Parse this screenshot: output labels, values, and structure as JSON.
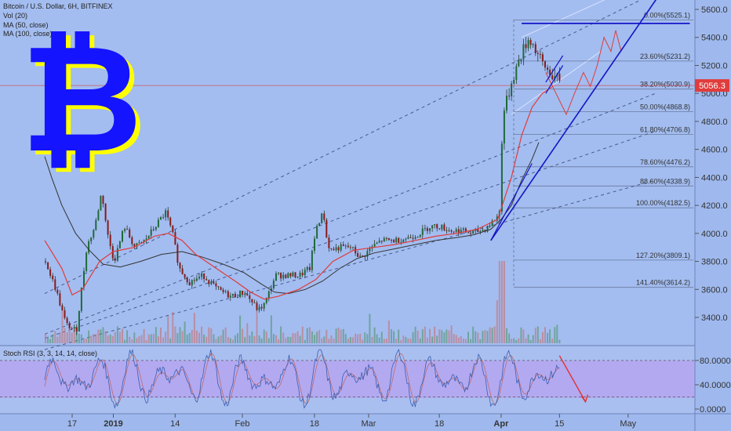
{
  "header": {
    "title": "Bitcoin / U.S. Dollar, 6H, BITFINEX",
    "ind1": "Vol (20)",
    "ind2": "MA (50, close)",
    "ind3": "MA (100, close)"
  },
  "price_label": "5056.3",
  "stoch_title": "Stoch RSI (3, 3, 14, 14, close)",
  "colors": {
    "background": "#9fb9ee",
    "price_line": "#e03c3c",
    "ma50": "#e03c3c",
    "ma100": "#333333",
    "trend": "#1414c8",
    "stoch_band": "#b7a2f2",
    "logo_fill": "#1414ff",
    "logo_shadow": "#ffff00"
  },
  "chart_data": [
    {
      "type": "candlestick",
      "title": "Bitcoin / U.S. Dollar, 6H, BITFINEX",
      "ylim": [
        3200,
        5700
      ],
      "y_ticks": [
        3400,
        3600,
        3800,
        4000,
        4200,
        4400,
        4600,
        4800,
        5000,
        5200,
        5400,
        5600
      ],
      "y_tick_labels": [
        "3400.0",
        "3600.0",
        "3800.0",
        "4000.0",
        "4200.0",
        "4400.0",
        "4600.0",
        "4800.0",
        "5000.0",
        "5200.0",
        "5400.0",
        "5600.0"
      ],
      "x_labels": [
        {
          "t": 0.4,
          "label": "17"
        },
        {
          "t": 1.0,
          "label": "2019"
        },
        {
          "t": 1.9,
          "label": "14"
        },
        {
          "t": 2.88,
          "label": "Feb"
        },
        {
          "t": 3.93,
          "label": "18"
        },
        {
          "t": 4.72,
          "label": "Mar"
        },
        {
          "t": 5.75,
          "label": "18"
        },
        {
          "t": 6.65,
          "label": "Apr"
        },
        {
          "t": 7.5,
          "label": "15"
        },
        {
          "t": 8.5,
          "label": "May"
        }
      ],
      "price_series": [
        [
          0.0,
          3800
        ],
        [
          0.15,
          3600
        ],
        [
          0.3,
          3350
        ],
        [
          0.45,
          3300
        ],
        [
          0.6,
          3900
        ],
        [
          0.72,
          4050
        ],
        [
          0.82,
          4300
        ],
        [
          0.9,
          4000
        ],
        [
          1.0,
          3800
        ],
        [
          1.15,
          4050
        ],
        [
          1.3,
          3900
        ],
        [
          1.45,
          3950
        ],
        [
          1.6,
          4050
        ],
        [
          1.75,
          4150
        ],
        [
          1.85,
          4000
        ],
        [
          1.95,
          3750
        ],
        [
          2.1,
          3650
        ],
        [
          2.3,
          3700
        ],
        [
          2.5,
          3600
        ],
        [
          2.7,
          3550
        ],
        [
          2.9,
          3580
        ],
        [
          3.1,
          3450
        ],
        [
          3.2,
          3500
        ],
        [
          3.35,
          3700
        ],
        [
          3.5,
          3700
        ],
        [
          3.7,
          3700
        ],
        [
          3.85,
          3750
        ],
        [
          3.95,
          4050
        ],
        [
          4.05,
          4150
        ],
        [
          4.1,
          3950
        ],
        [
          4.15,
          3880
        ],
        [
          4.3,
          3900
        ],
        [
          4.45,
          3900
        ],
        [
          4.6,
          3820
        ],
        [
          4.75,
          3900
        ],
        [
          4.9,
          3950
        ],
        [
          5.1,
          3950
        ],
        [
          5.3,
          3970
        ],
        [
          5.45,
          4000
        ],
        [
          5.6,
          4050
        ],
        [
          5.75,
          4050
        ],
        [
          5.9,
          4020
        ],
        [
          6.05,
          4020
        ],
        [
          6.2,
          4000
        ],
        [
          6.4,
          4030
        ],
        [
          6.55,
          4100
        ],
        [
          6.62,
          4150
        ],
        [
          6.66,
          4850
        ],
        [
          6.7,
          4900
        ],
        [
          6.8,
          5100
        ],
        [
          6.95,
          5300
        ],
        [
          7.05,
          5400
        ],
        [
          7.15,
          5300
        ],
        [
          7.25,
          5200
        ],
        [
          7.35,
          5150
        ],
        [
          7.45,
          5100
        ],
        [
          7.5,
          5056
        ]
      ],
      "ma50": [
        [
          0.0,
          3950
        ],
        [
          0.25,
          3750
        ],
        [
          0.4,
          3560
        ],
        [
          0.55,
          3600
        ],
        [
          0.8,
          3800
        ],
        [
          1.0,
          3870
        ],
        [
          1.3,
          3900
        ],
        [
          1.6,
          3980
        ],
        [
          1.8,
          4000
        ],
        [
          2.0,
          3950
        ],
        [
          2.2,
          3850
        ],
        [
          2.5,
          3750
        ],
        [
          2.8,
          3650
        ],
        [
          3.0,
          3580
        ],
        [
          3.2,
          3530
        ],
        [
          3.4,
          3550
        ],
        [
          3.7,
          3600
        ],
        [
          3.95,
          3670
        ],
        [
          4.2,
          3800
        ],
        [
          4.5,
          3880
        ],
        [
          4.8,
          3900
        ],
        [
          5.1,
          3920
        ],
        [
          5.4,
          3950
        ],
        [
          5.7,
          3980
        ],
        [
          6.0,
          4000
        ],
        [
          6.3,
          4030
        ],
        [
          6.6,
          4100
        ],
        [
          6.8,
          4400
        ],
        [
          6.95,
          4700
        ],
        [
          7.1,
          4900
        ],
        [
          7.25,
          5000
        ],
        [
          7.4,
          5050
        ]
      ],
      "ma100": [
        [
          0.0,
          4550
        ],
        [
          0.1,
          4400
        ],
        [
          0.25,
          4200
        ],
        [
          0.45,
          4000
        ],
        [
          0.65,
          3880
        ],
        [
          0.85,
          3780
        ],
        [
          1.1,
          3760
        ],
        [
          1.4,
          3800
        ],
        [
          1.7,
          3850
        ],
        [
          2.0,
          3870
        ],
        [
          2.3,
          3830
        ],
        [
          2.6,
          3780
        ],
        [
          2.9,
          3720
        ],
        [
          3.15,
          3640
        ],
        [
          3.35,
          3580
        ],
        [
          3.55,
          3570
        ],
        [
          3.8,
          3600
        ],
        [
          4.05,
          3660
        ],
        [
          4.3,
          3750
        ],
        [
          4.55,
          3820
        ],
        [
          4.8,
          3860
        ],
        [
          5.1,
          3890
        ],
        [
          5.4,
          3920
        ],
        [
          5.7,
          3950
        ],
        [
          6.0,
          3970
        ],
        [
          6.25,
          3990
        ],
        [
          6.5,
          4030
        ],
        [
          6.65,
          4100
        ],
        [
          6.8,
          4200
        ],
        [
          6.95,
          4380
        ],
        [
          7.1,
          4530
        ],
        [
          7.2,
          4650
        ]
      ],
      "projection": [
        [
          7.3,
          5150
        ],
        [
          7.45,
          5000
        ],
        [
          7.6,
          4850
        ],
        [
          7.72,
          5000
        ],
        [
          7.85,
          5150
        ],
        [
          7.95,
          5050
        ],
        [
          8.05,
          5200
        ],
        [
          8.15,
          5400
        ],
        [
          8.25,
          5300
        ],
        [
          8.32,
          5450
        ],
        [
          8.4,
          5300
        ]
      ],
      "fib_levels": [
        {
          "label": "0.00%(5525.1)",
          "value": 5525.1
        },
        {
          "label": "23.60%(5231.2)",
          "value": 5231.2
        },
        {
          "label": "38.20%(5030.9)",
          "value": 5030.9
        },
        {
          "label": "50.00%(4868.8)",
          "value": 4868.8
        },
        {
          "label": "61.80%(4706.8)",
          "value": 4706.8
        },
        {
          "label": "78.60%(4476.2)",
          "value": 4476.2
        },
        {
          "label": "88.60%(4338.9)",
          "value": 4338.9
        },
        {
          "label": "100.00%(4182.5)",
          "value": 4182.5
        },
        {
          "label": "127.20%(3809.1)",
          "value": 3809.1
        },
        {
          "label": "141.40%(3614.2)",
          "value": 3614.2
        }
      ],
      "current_price": 5056.3
    },
    {
      "type": "line",
      "title": "Stoch RSI (3, 3, 14, 14, close)",
      "ylim": [
        -5,
        105
      ],
      "y_ticks": [
        0,
        40,
        80
      ],
      "y_tick_labels": [
        "0.0000",
        "40.0000",
        "80.0000"
      ],
      "band": [
        20,
        80
      ]
    }
  ]
}
